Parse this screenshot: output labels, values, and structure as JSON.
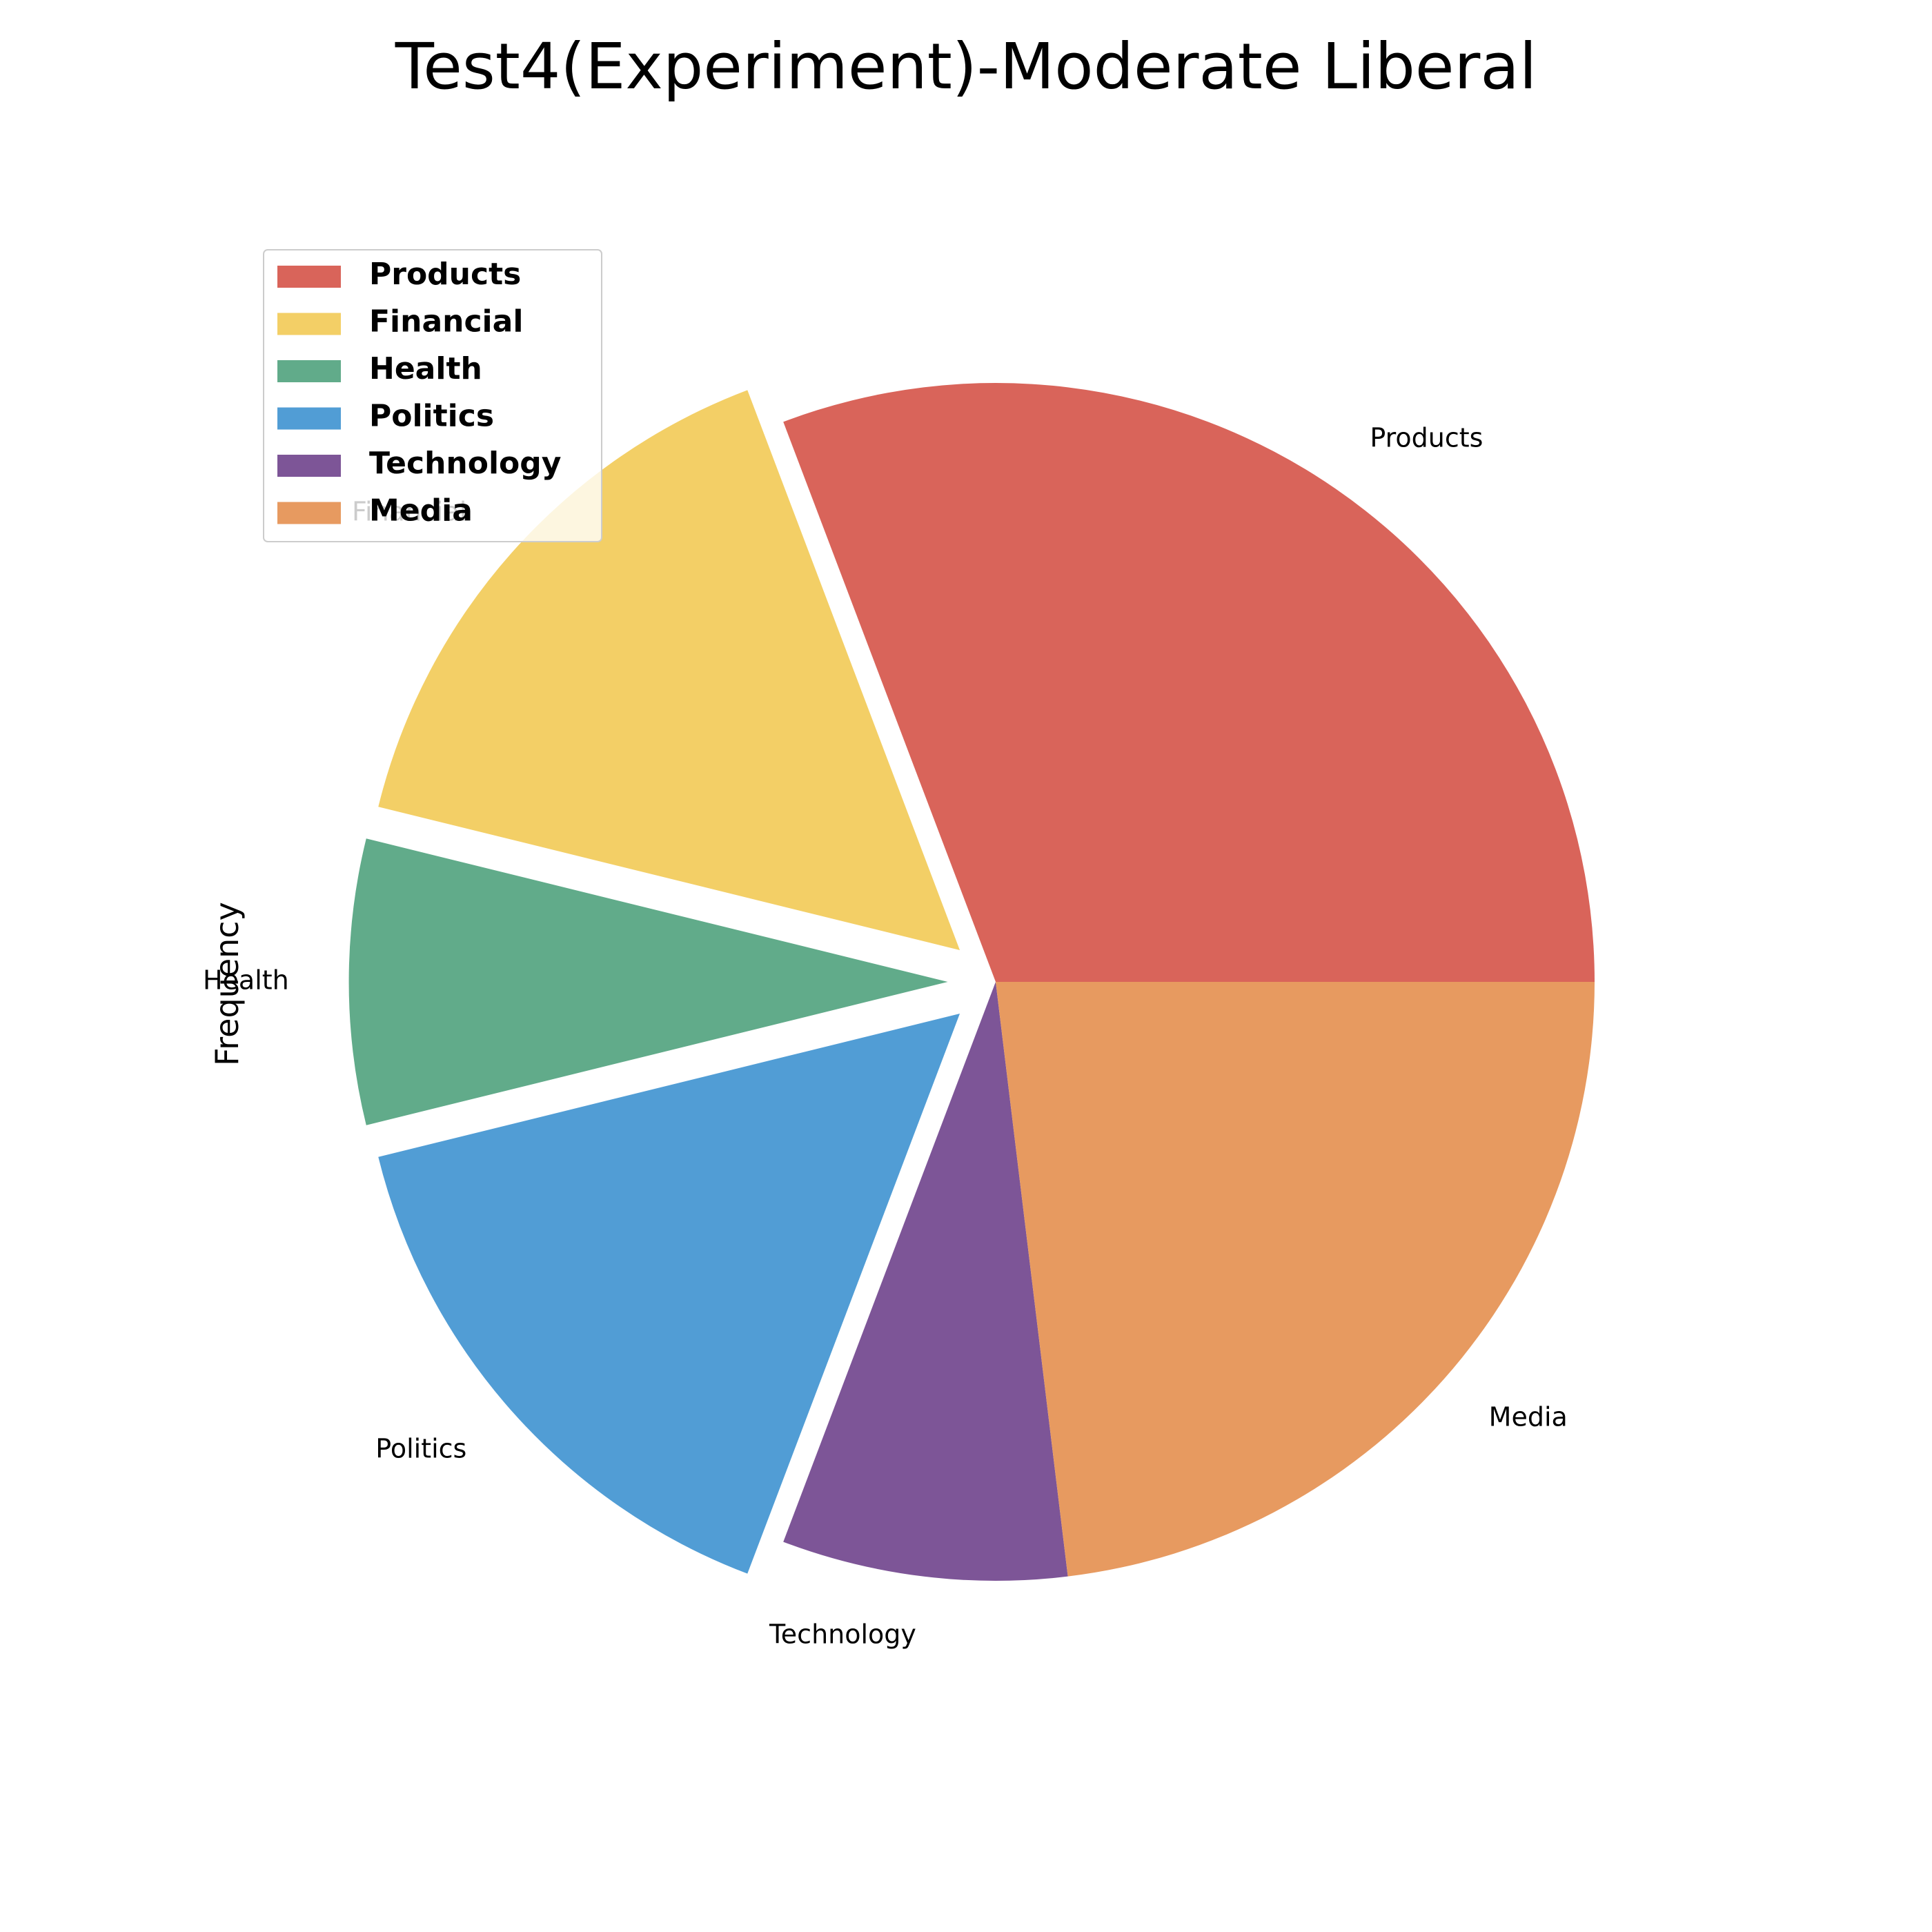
{
  "chart_data": {
    "type": "pie",
    "title": "Test4(Experiment)-Moderate Liberal",
    "ylabel": "Frequency",
    "start_angle_deg": 0,
    "direction": "counterclockwise",
    "legend_position": "upper-left",
    "slices": [
      {
        "label": "Products",
        "value": 4,
        "color": "#d9645a",
        "exploded": false
      },
      {
        "label": "Financial",
        "value": 2,
        "color": "#f3cf66",
        "exploded": true
      },
      {
        "label": "Health",
        "value": 1,
        "color": "#61ab8a",
        "exploded": true
      },
      {
        "label": "Politics",
        "value": 2,
        "color": "#519dd5",
        "exploded": true
      },
      {
        "label": "Technology",
        "value": 1,
        "color": "#7d5597",
        "exploded": false
      },
      {
        "label": "Media",
        "value": 3,
        "color": "#e79a60",
        "exploded": false
      }
    ]
  }
}
